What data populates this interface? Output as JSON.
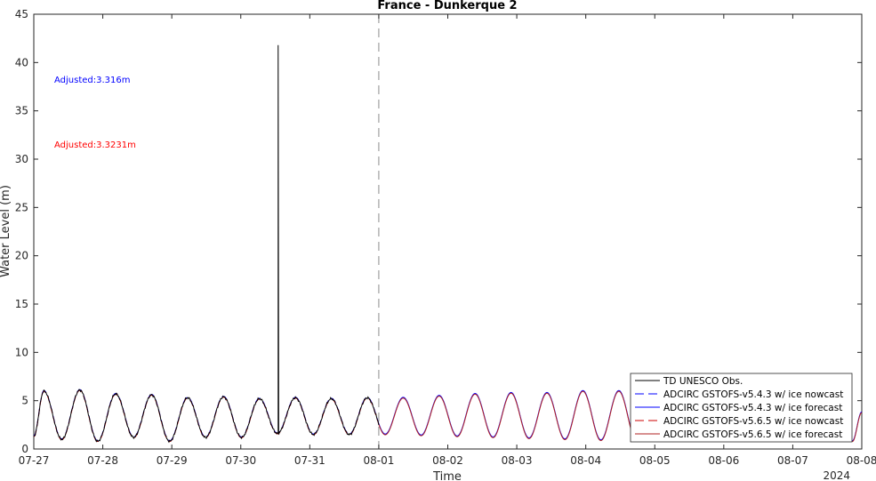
{
  "chart_data": {
    "type": "line",
    "title": "France - Dunkerque 2",
    "xlabel": "Time",
    "ylabel": "Water Level (m)",
    "year_label": "2024",
    "xlim": [
      "2024-07-27T00:00",
      "2024-08-08T00:00"
    ],
    "ylim": [
      0,
      45
    ],
    "y_ticks": [
      0,
      5,
      10,
      15,
      20,
      25,
      30,
      35,
      40,
      45
    ],
    "x_ticks": [
      "07-27",
      "07-28",
      "07-29",
      "07-30",
      "07-31",
      "08-01",
      "08-02",
      "08-03",
      "08-04",
      "08-05",
      "08-06",
      "08-07",
      "08-08"
    ],
    "nowcast_forecast_boundary": "2024-08-01T00:00",
    "grid": false,
    "legend_position": "bottom-right",
    "annotations": [
      {
        "text": "Adjusted:3.316m",
        "color": "#0000ff"
      },
      {
        "text": "Adjusted:3.3231m",
        "color": "#ff0000"
      }
    ],
    "series": [
      {
        "name": "TD UNESCO Obs.",
        "color": "#000000",
        "dash": "solid",
        "x_start": "2024-07-27T00:00",
        "x_end": "2024-08-01T00:00",
        "spike": {
          "x": "2024-07-30T13:00",
          "y": 41.8
        }
      },
      {
        "name": "ADCIRC GSTOFS-v5.4.3 w/ ice nowcast",
        "color": "#0000ff",
        "dash": "dashed",
        "x_start": "2024-07-27T00:00",
        "x_end": "2024-08-01T00:00"
      },
      {
        "name": "ADCIRC GSTOFS-v5.4.3 w/ ice forecast",
        "color": "#0000ff",
        "dash": "solid",
        "x_start": "2024-08-01T00:00",
        "x_end": "2024-08-08T00:00"
      },
      {
        "name": "ADCIRC GSTOFS-v5.6.5 w/ ice nowcast",
        "color": "#cc0000",
        "dash": "dashed",
        "x_start": "2024-07-27T00:00",
        "x_end": "2024-08-01T00:00"
      },
      {
        "name": "ADCIRC GSTOFS-v5.6.5 w/ ice forecast",
        "color": "#b22222",
        "dash": "solid",
        "x_start": "2024-08-01T00:00",
        "x_end": "2024-08-08T00:00"
      }
    ],
    "tide": {
      "high_water": [
        [
          "2024-07-27T03:30",
          6.0
        ],
        [
          "2024-07-27T16:00",
          6.1
        ],
        [
          "2024-07-28T04:30",
          5.7
        ],
        [
          "2024-07-28T17:00",
          5.6
        ],
        [
          "2024-07-29T05:30",
          5.3
        ],
        [
          "2024-07-29T18:00",
          5.4
        ],
        [
          "2024-07-30T06:30",
          5.2
        ],
        [
          "2024-07-30T19:00",
          5.3
        ],
        [
          "2024-07-31T07:30",
          5.2
        ],
        [
          "2024-07-31T20:00",
          5.3
        ],
        [
          "2024-08-01T08:30",
          5.3
        ],
        [
          "2024-08-01T21:00",
          5.5
        ],
        [
          "2024-08-02T09:30",
          5.7
        ],
        [
          "2024-08-02T22:00",
          5.8
        ],
        [
          "2024-08-03T10:30",
          5.8
        ],
        [
          "2024-08-03T23:00",
          6.0
        ],
        [
          "2024-08-04T11:30",
          6.0
        ],
        [
          "2024-08-05T00:00",
          5.9
        ],
        [
          "2024-08-05T12:30",
          5.6
        ],
        [
          "2024-08-06T01:00",
          5.5
        ],
        [
          "2024-08-06T13:30",
          5.3
        ],
        [
          "2024-08-07T02:00",
          5.2
        ],
        [
          "2024-08-07T14:30",
          5.0
        ]
      ],
      "low_water": [
        [
          "2024-07-27T00:00",
          1.3
        ],
        [
          "2024-07-27T09:45",
          1.0
        ],
        [
          "2024-07-27T22:15",
          0.8
        ],
        [
          "2024-07-28T10:45",
          1.2
        ],
        [
          "2024-07-28T23:15",
          0.8
        ],
        [
          "2024-07-29T11:45",
          1.2
        ],
        [
          "2024-07-30T00:15",
          1.2
        ],
        [
          "2024-07-30T12:45",
          1.6
        ],
        [
          "2024-07-31T01:15",
          1.5
        ],
        [
          "2024-07-31T13:45",
          1.5
        ],
        [
          "2024-08-01T02:15",
          1.5
        ],
        [
          "2024-08-01T14:45",
          1.4
        ],
        [
          "2024-08-02T03:15",
          1.3
        ],
        [
          "2024-08-02T15:45",
          1.2
        ],
        [
          "2024-08-03T04:15",
          1.1
        ],
        [
          "2024-08-03T16:45",
          1.0
        ],
        [
          "2024-08-04T05:15",
          0.9
        ],
        [
          "2024-08-04T17:45",
          0.8
        ],
        [
          "2024-08-05T06:15",
          0.8
        ],
        [
          "2024-08-05T18:45",
          0.8
        ],
        [
          "2024-08-06T07:15",
          0.8
        ],
        [
          "2024-08-06T19:45",
          0.8
        ],
        [
          "2024-08-07T08:15",
          0.9
        ],
        [
          "2024-08-07T20:45",
          0.8
        ]
      ],
      "end_value": [
        "2024-08-08T00:00",
        3.8
      ]
    }
  }
}
